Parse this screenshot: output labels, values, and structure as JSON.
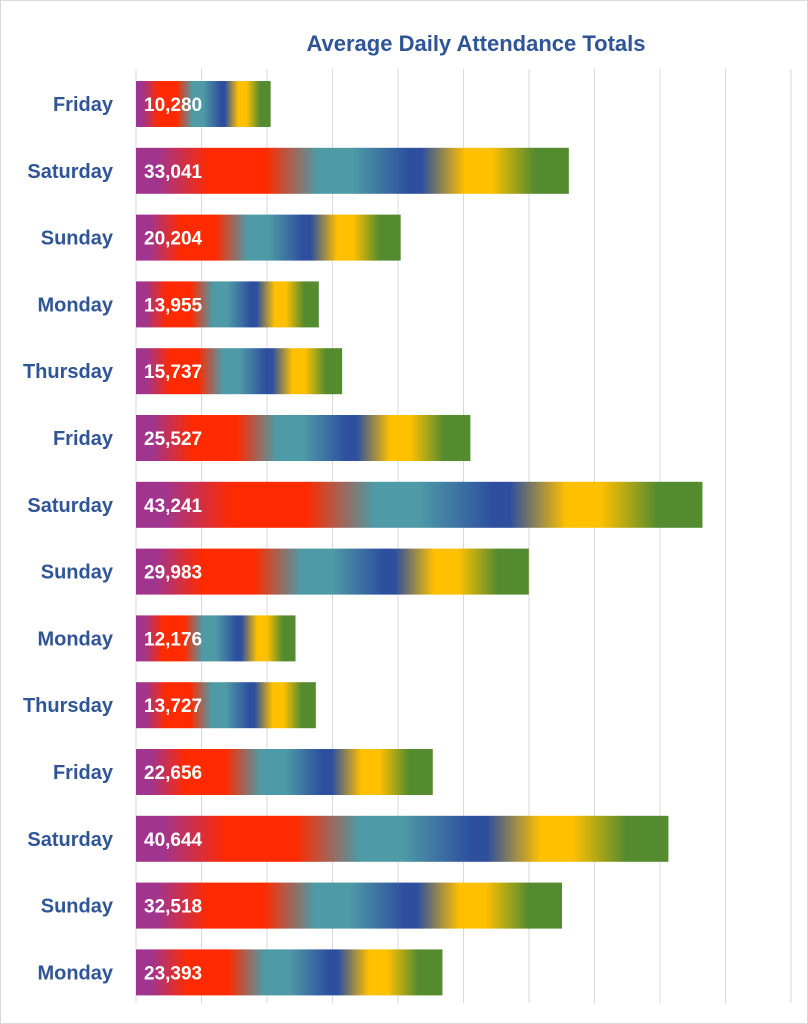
{
  "chart_data": {
    "type": "bar",
    "orientation": "horizontal",
    "title": "Average Daily Attendance Totals",
    "xlabel": "",
    "ylabel": "",
    "xlim": [
      0,
      50000
    ],
    "grid": true,
    "categories": [
      "Friday",
      "Saturday",
      "Sunday",
      "Monday",
      "Thursday",
      "Friday",
      "Saturday",
      "Sunday",
      "Monday",
      "Thursday",
      "Friday",
      "Saturday",
      "Sunday",
      "Monday"
    ],
    "values": [
      10280,
      33041,
      20204,
      13955,
      15737,
      25527,
      43241,
      29983,
      12176,
      13727,
      22656,
      40644,
      32518,
      23393
    ],
    "value_labels": [
      "10,280",
      "33,041",
      "20,204",
      "13,955",
      "15,737",
      "25,527",
      "43,241",
      "29,983",
      "12,176",
      "13,727",
      "22,656",
      "40,644",
      "32,518",
      "23,393"
    ],
    "bar_fill": "rainbow-gradient",
    "gradient_colors": [
      "#a0358f",
      "#ff2a00",
      "#4e9aa6",
      "#2d4f9e",
      "#ffc000",
      "#558b2f"
    ]
  },
  "colors": {
    "title": "#2f5597",
    "category_label": "#2f5597",
    "value_label": "#ffffff",
    "gridline": "#d9d9d9"
  }
}
